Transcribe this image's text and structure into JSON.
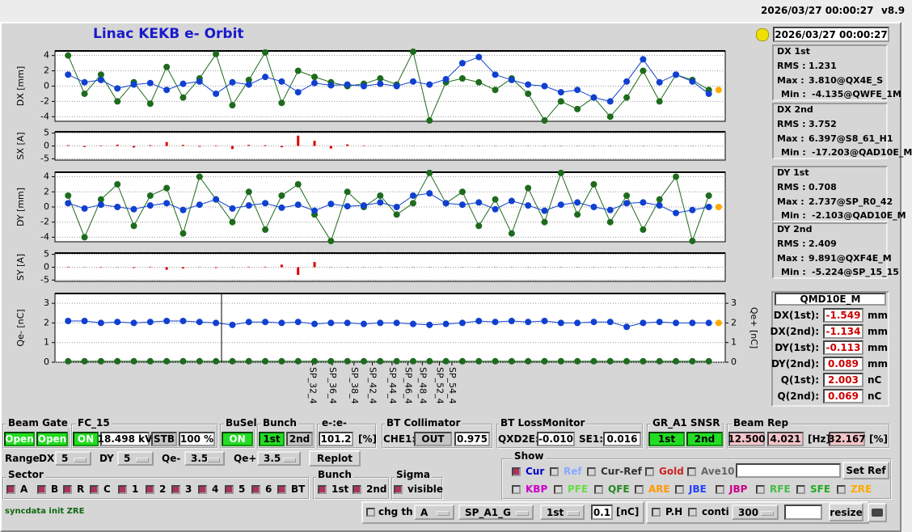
{
  "header": {
    "timestamp": "2026/03/27 00:00:27",
    "version": "v8.9",
    "title": "Linac KEKB e- Orbit",
    "clock": "2026/03/27 00:00:27"
  },
  "chart_data": [
    {
      "type": "line",
      "ylabel": "DX [mm]",
      "ylim": [
        -4.6,
        4.6
      ],
      "yticks": [
        -4,
        -2,
        0,
        2,
        4
      ],
      "grid": true,
      "xlim": [
        -1,
        101
      ],
      "x": [
        1,
        3.5,
        6,
        8.5,
        11,
        13.5,
        16,
        18.5,
        21,
        23.5,
        26,
        28.5,
        31,
        33.5,
        36,
        38.5,
        41,
        43.5,
        46,
        48.5,
        51,
        53.5,
        56,
        58.5,
        61,
        63.5,
        66,
        68.5,
        71,
        73.5,
        76,
        78.5,
        81,
        83.5,
        86,
        88.5,
        91,
        93.5,
        96,
        98.5
      ],
      "series": [
        {
          "color": "#1d6b1d",
          "values": [
            4.0,
            -1.0,
            1.5,
            -2.0,
            0.5,
            -2.3,
            2.5,
            -1.5,
            1.0,
            4.2,
            -2.5,
            0.8,
            4.4,
            -2.2,
            2.0,
            1.2,
            0.5,
            0.0,
            0.3,
            1.0,
            0.2,
            4.5,
            -4.5,
            0.5,
            1.0,
            0.5,
            -0.5,
            1.0,
            -1.0,
            -4.5,
            -2.0,
            -3.0,
            -1.5,
            -4.0,
            -1.5,
            2.0,
            -2.0,
            1.5,
            0.8,
            -0.5
          ]
        },
        {
          "color": "#1040d0",
          "values": [
            1.5,
            0.5,
            0.8,
            -0.3,
            0.2,
            0.4,
            -0.5,
            0.3,
            0.6,
            -1.0,
            0.5,
            0.2,
            1.2,
            0.6,
            -0.8,
            0.4,
            0.1,
            0.2,
            0.0,
            0.3,
            0.0,
            0.6,
            0.2,
            0.9,
            3.0,
            3.8,
            1.5,
            0.8,
            0.2,
            0.0,
            -0.8,
            -0.5,
            -1.5,
            -2.0,
            0.6,
            3.5,
            0.5,
            1.5,
            0.6,
            -1.0
          ]
        },
        {
          "color": "#ffaa00",
          "x": [
            100
          ],
          "values": [
            -0.5
          ]
        }
      ]
    },
    {
      "type": "bar",
      "ylabel": "SX [A]",
      "ylim": [
        -5.5,
        5.5
      ],
      "yticks": [
        -5,
        0,
        5
      ],
      "grid": true,
      "xlim": [
        -1,
        101
      ],
      "x": [
        1,
        3.5,
        6,
        8.5,
        11,
        13.5,
        16,
        18.5,
        21,
        23.5,
        26,
        28.5,
        31,
        33.5,
        36,
        38.5,
        41,
        43.5,
        46,
        48.5,
        51,
        53.5,
        56,
        58.5,
        61,
        63.5,
        66,
        68.5,
        71,
        73.5,
        76,
        78.5,
        81,
        83.5,
        86,
        88.5,
        91,
        93.5,
        96,
        98.5
      ],
      "series": [
        {
          "color": "#dd0000",
          "values": [
            0.3,
            -0.4,
            0.2,
            0.5,
            -0.6,
            0.3,
            1.5,
            0.4,
            -0.3,
            0.2,
            -1.2,
            0.4,
            0.3,
            -0.5,
            4.0,
            2.0,
            -1.0,
            0.6,
            0.2,
            0.1,
            0.1,
            0.1,
            0.1,
            0.1,
            0.1,
            0.1,
            0.1,
            0.1,
            0.1,
            0.1,
            0.1,
            0.1,
            0.1,
            0.1,
            0.1,
            0.1,
            0.1,
            0.1,
            0.1,
            0.1
          ]
        }
      ]
    },
    {
      "type": "line",
      "ylabel": "DY [mm]",
      "ylim": [
        -4.6,
        4.6
      ],
      "yticks": [
        -4,
        -2,
        0,
        2,
        4
      ],
      "grid": true,
      "xlim": [
        -1,
        101
      ],
      "x": [
        1,
        3.5,
        6,
        8.5,
        11,
        13.5,
        16,
        18.5,
        21,
        23.5,
        26,
        28.5,
        31,
        33.5,
        36,
        38.5,
        41,
        43.5,
        46,
        48.5,
        51,
        53.5,
        56,
        58.5,
        61,
        63.5,
        66,
        68.5,
        71,
        73.5,
        76,
        78.5,
        81,
        83.5,
        86,
        88.5,
        91,
        93.5,
        96,
        98.5
      ],
      "series": [
        {
          "color": "#1d6b1d",
          "values": [
            1.5,
            -4.0,
            1.0,
            3.0,
            -2.5,
            1.5,
            2.5,
            -3.5,
            4.0,
            1.0,
            -2.0,
            2.0,
            -3.0,
            1.5,
            3.0,
            -1.0,
            -4.5,
            2.0,
            0.0,
            1.5,
            -1.0,
            0.5,
            4.5,
            0.5,
            2.0,
            -2.5,
            1.0,
            -3.5,
            2.5,
            -2.0,
            4.5,
            -1.0,
            3.0,
            -2.0,
            1.5,
            -3.0,
            1.0,
            4.0,
            -4.5,
            1.5
          ]
        },
        {
          "color": "#1040d0",
          "values": [
            0.5,
            -0.2,
            0.3,
            0.0,
            -0.3,
            0.2,
            0.5,
            -0.4,
            0.3,
            1.0,
            -0.2,
            0.2,
            0.5,
            -0.1,
            0.3,
            -0.5,
            0.4,
            0.1,
            0.2,
            0.6,
            0.0,
            1.5,
            1.8,
            0.5,
            0.3,
            0.6,
            -0.3,
            0.8,
            0.2,
            -0.5,
            0.3,
            0.6,
            0.0,
            -0.4,
            0.5,
            0.6,
            0.2,
            -0.8,
            -0.4,
            0.0
          ]
        },
        {
          "color": "#ffaa00",
          "x": [
            100
          ],
          "values": [
            0.0
          ]
        }
      ]
    },
    {
      "type": "bar",
      "ylabel": "SY [A]",
      "ylim": [
        -5.5,
        5.5
      ],
      "yticks": [
        -5,
        0,
        5
      ],
      "grid": true,
      "xlim": [
        -1,
        101
      ],
      "x": [
        1,
        3.5,
        6,
        8.5,
        11,
        13.5,
        16,
        18.5,
        21,
        23.5,
        26,
        28.5,
        31,
        33.5,
        36,
        38.5,
        41,
        43.5,
        46,
        48.5,
        51,
        53.5,
        56,
        58.5,
        61,
        63.5,
        66,
        68.5,
        71,
        73.5,
        76,
        78.5,
        81,
        83.5,
        86,
        88.5,
        91,
        93.5,
        96,
        98.5
      ],
      "series": [
        {
          "color": "#dd0000",
          "values": [
            0.2,
            0.1,
            -0.2,
            0.1,
            -0.3,
            0.2,
            -1.0,
            -0.5,
            0.1,
            -0.3,
            0.1,
            0.2,
            0.2,
            1.0,
            -3.0,
            2.0,
            0.1,
            0.1,
            0.1,
            0.1,
            0.1,
            0.1,
            0.1,
            0.1,
            0.1,
            0.1,
            0.1,
            0.1,
            0.1,
            0.1,
            0.1,
            0.1,
            0.1,
            0.1,
            0.1,
            0.1,
            0.1,
            0.1,
            0.1,
            0.1
          ]
        }
      ]
    },
    {
      "type": "line",
      "ylabel": "Qe- [nC]",
      "ylim": [
        0,
        3.5
      ],
      "yticks": [
        0,
        1,
        2,
        3
      ],
      "y2label": "Qe+ [nC]",
      "y2lim": [
        0,
        3.5
      ],
      "y2ticks": [
        0,
        1,
        2,
        3
      ],
      "grid": true,
      "xlim": [
        -1,
        101
      ],
      "x": [
        1,
        3.5,
        6,
        8.5,
        11,
        13.5,
        16,
        18.5,
        21,
        23.5,
        26,
        28.5,
        31,
        33.5,
        36,
        38.5,
        41,
        43.5,
        46,
        48.5,
        51,
        53.5,
        56,
        58.5,
        61,
        63.5,
        66,
        68.5,
        71,
        73.5,
        76,
        78.5,
        81,
        83.5,
        86,
        88.5,
        91,
        93.5,
        96,
        98.5
      ],
      "xticks": [
        {
          "value": 38.2,
          "label": "SP_32_4"
        },
        {
          "value": 41.2,
          "label": "SP_36_4"
        },
        {
          "value": 44.5,
          "label": "SP_38_4"
        },
        {
          "value": 47.3,
          "label": "SP_42_4"
        },
        {
          "value": 50.3,
          "label": "SP_44_4"
        },
        {
          "value": 52.7,
          "label": "SP_46_4"
        },
        {
          "value": 54.9,
          "label": "SP_48_4"
        },
        {
          "value": 57.5,
          "label": "SP_52_4"
        },
        {
          "value": 59.4,
          "label": "SP_54_4"
        }
      ],
      "series": [
        {
          "color": "#1d6b1d",
          "values": [
            0.05,
            0.05,
            0.05,
            0.05,
            0.05,
            0.05,
            0.05,
            0.05,
            0.05,
            0.05,
            0.05,
            0.05,
            0.05,
            0.05,
            0.05,
            0.05,
            0.05,
            0.05,
            0.05,
            0.05,
            0.05,
            0.05,
            0.05,
            0.05,
            0.05,
            0.05,
            0.05,
            0.05,
            0.05,
            0.05,
            0.05,
            0.05,
            0.05,
            0.05,
            0.05,
            0.05,
            0.05,
            0.05,
            0.05,
            0.05
          ]
        },
        {
          "color": "#1040d0",
          "values": [
            2.1,
            2.1,
            2.0,
            2.05,
            2.0,
            2.05,
            2.1,
            2.1,
            2.05,
            2.0,
            1.9,
            2.05,
            2.05,
            2.0,
            2.05,
            1.95,
            2.0,
            2.0,
            1.95,
            2.0,
            2.0,
            1.95,
            1.9,
            1.95,
            2.0,
            2.1,
            2.05,
            2.1,
            2.05,
            2.1,
            2.0,
            2.0,
            2.05,
            2.05,
            1.8,
            2.0,
            2.05,
            2.0,
            2.0,
            2.0
          ]
        },
        {
          "color": "#ffaa00",
          "x": [
            100
          ],
          "values": [
            2.0
          ]
        }
      ]
    }
  ],
  "stats": [
    {
      "title": "DX 1st",
      "rms_label": "RMS :",
      "rms": "1.231",
      "max_label": "Max :",
      "max": "3.810@QX4E_S",
      "min_label": "Min :",
      "min": "-4.135@QWFE_1M"
    },
    {
      "title": "DX 2nd",
      "rms_label": "RMS :",
      "rms": "3.752",
      "max_label": "Max :",
      "max": "6.397@S8_61_H1",
      "min_label": "Min :",
      "min": "-17.203@QAD10E_M"
    },
    {
      "title": "DY 1st",
      "rms_label": "RMS :",
      "rms": "0.708",
      "max_label": "Max :",
      "max": "2.737@SP_R0_42",
      "min_label": "Min :",
      "min": "-2.103@QAD10E_M"
    },
    {
      "title": "DY 2nd",
      "rms_label": "RMS :",
      "rms": "2.409",
      "max_label": "Max :",
      "max": "9.891@QXF4E_M",
      "min_label": "Min :",
      "min": "-5.224@SP_15_15"
    }
  ],
  "qmd": {
    "title": "QMD10E_M",
    "rows": [
      {
        "label": "DX(1st):",
        "value": "-1.549",
        "unit": "mm"
      },
      {
        "label": "DX(2nd):",
        "value": "-1.134",
        "unit": "mm"
      },
      {
        "label": "DY(1st):",
        "value": "-0.113",
        "unit": "mm"
      },
      {
        "label": "DY(2nd):",
        "value": "0.089",
        "unit": "mm"
      },
      {
        "label": "Q(1st):",
        "value": "2.003",
        "unit": "nC"
      },
      {
        "label": "Q(2nd):",
        "value": "0.069",
        "unit": "nC"
      }
    ]
  },
  "controls": {
    "beam_gate": {
      "label": "Beam Gate",
      "a": "Open",
      "b": "Open"
    },
    "fc15": {
      "label": "FC_15",
      "state": "ON",
      "voltage": "18.498 kV",
      "mode": "STB",
      "percent": "100 %"
    },
    "busel": {
      "label": "BuSel",
      "state": "ON"
    },
    "bunch_sel": {
      "label": "Bunch",
      "first": "1st",
      "second": "2nd"
    },
    "ratio": {
      "label": "e-:e-",
      "value": "101.2",
      "unit": "[%]"
    },
    "collimator": {
      "label": "BT Collimator",
      "name": "CHE1:",
      "state": "OUT",
      "value": "0.975"
    },
    "loss": {
      "label": "BT LossMonitor",
      "name1": "QXD2E:",
      "value1": "-0.010",
      "name2": "SE1:",
      "value2": "0.016"
    },
    "snsr": {
      "label": "GR_A1 SNSR",
      "first": "1st",
      "second": "2nd"
    },
    "rep": {
      "label": "Beam Rep",
      "v1": "12.500",
      "v2": "4.021",
      "unit1": "[Hz]",
      "v3": "32.167",
      "unit2": "[%]"
    },
    "range": {
      "label": "Range",
      "dx_label": "DX",
      "dx": "5",
      "dy_label": "DY",
      "dy": "5",
      "qe_minus_label": "Qe-",
      "qe_minus": "3.5",
      "qe_plus_label": "Qe+",
      "qe_plus": "3.5",
      "replot": "Replot"
    },
    "show": {
      "label": "Show",
      "row1": [
        "Cur",
        "Ref",
        "Cur-Ref",
        "Gold",
        "Ave10"
      ],
      "set_ref": "Set Ref",
      "row2": [
        "KBP",
        "PFE",
        "QFE",
        "ARE",
        "JBE",
        "JBP",
        "RFE",
        "SFE",
        "ZRE"
      ]
    },
    "sector": {
      "label": "Sector",
      "items": [
        "A",
        "B",
        "R",
        "C",
        "1",
        "2",
        "3",
        "4",
        "5",
        "6",
        "BT"
      ]
    },
    "bunch": {
      "label": "Bunch",
      "items": [
        "1st",
        "2nd"
      ]
    },
    "sigma": {
      "label": "Sigma",
      "items": [
        "visible"
      ]
    },
    "status": "syncdata init ZRE",
    "bottom": {
      "chg_th": "chg th",
      "sel1": "A",
      "sel2": "SP_A1_G",
      "sel3": "1st",
      "threshold": "0.1",
      "unit": "[nC]",
      "ph": "P.H",
      "conti": "conti",
      "count": "300",
      "resize": "resize"
    }
  }
}
